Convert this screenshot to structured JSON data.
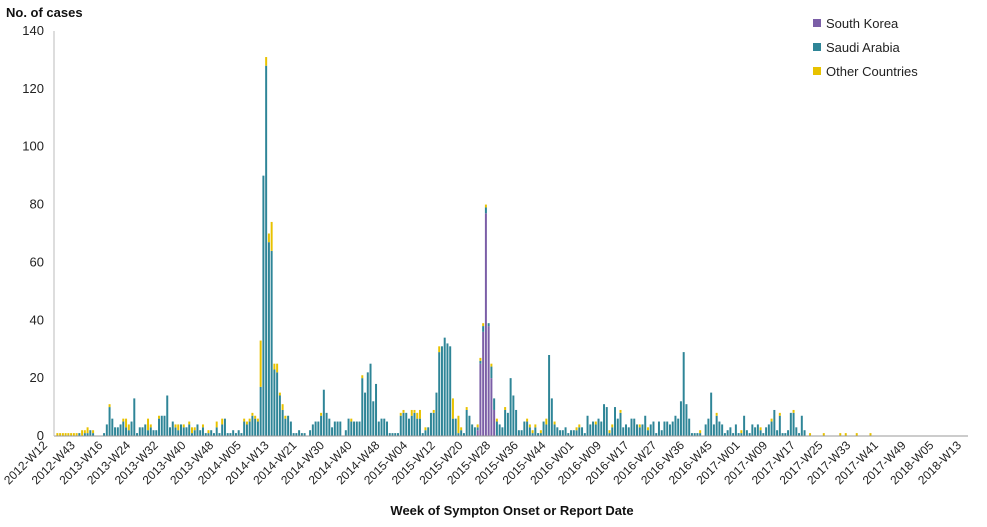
{
  "chart_data": {
    "type": "bar",
    "stacked": true,
    "ylabel": "No. of cases",
    "xlabel": "Week of Sympton Onset or Report Date",
    "ylim": [
      0,
      140
    ],
    "yticks": [
      0,
      20,
      40,
      60,
      80,
      100,
      120,
      140
    ],
    "grid": false,
    "legend_position": "top-right",
    "tick_labels": [
      "2012-W12",
      "2012-W43",
      "2013-W16",
      "2013-W24",
      "2013-W32",
      "2013-W40",
      "2013-W48",
      "2014-W05",
      "2014-W13",
      "2014-W21",
      "2014-W30",
      "2014-W40",
      "2014-W48",
      "2015-W04",
      "2015-W12",
      "2015-W20",
      "2015-W28",
      "2015-W36",
      "2015-W44",
      "2016-W01",
      "2016-W09",
      "2016-W17",
      "2016-W27",
      "2016-W36",
      "2016-W45",
      "2017-W01",
      "2017-W09",
      "2017-W17",
      "2017-W25",
      "2017-W33",
      "2017-W41",
      "2017-W49",
      "2018-W05",
      "2018-W13"
    ],
    "series": [
      {
        "name": "South Korea",
        "color": "#7b5ea7",
        "values": [
          0,
          0,
          0,
          0,
          0,
          0,
          0,
          0,
          0,
          0,
          0,
          0,
          0,
          0,
          0,
          0,
          0,
          0,
          0,
          0,
          0,
          0,
          0,
          0,
          0,
          0,
          0,
          0,
          0,
          0,
          0,
          0,
          0,
          0,
          0,
          0,
          0,
          0,
          0,
          0,
          0,
          0,
          0,
          0,
          0,
          0,
          0,
          0,
          0,
          0,
          0,
          0,
          0,
          0,
          0,
          0,
          0,
          0,
          0,
          0,
          0,
          0,
          0,
          0,
          0,
          0,
          0,
          0,
          0,
          0,
          0,
          0,
          0,
          0,
          0,
          0,
          0,
          0,
          0,
          0,
          0,
          0,
          0,
          0,
          0,
          0,
          0,
          0,
          0,
          0,
          0,
          0,
          0,
          0,
          0,
          0,
          0,
          0,
          0,
          0,
          0,
          0,
          0,
          0,
          0,
          0,
          0,
          0,
          0,
          0,
          0,
          0,
          0,
          0,
          0,
          0,
          0,
          0,
          0,
          0,
          0,
          0,
          0,
          0,
          0,
          0,
          0,
          0,
          0,
          0,
          0,
          0,
          0,
          0,
          0,
          0,
          0,
          0,
          0,
          0,
          0,
          0,
          0,
          0,
          0,
          0,
          0,
          0,
          0,
          0,
          0,
          0,
          0,
          2,
          25,
          36,
          77,
          38,
          20,
          9,
          0,
          0,
          0,
          0,
          0,
          0,
          0,
          0,
          0,
          0,
          0,
          0,
          0,
          0,
          0,
          0,
          0,
          0,
          0,
          0,
          0,
          0,
          0,
          0,
          0,
          0,
          0,
          0,
          0,
          0,
          0,
          0,
          0,
          0,
          0,
          0,
          0,
          0,
          0,
          0,
          0,
          0,
          0,
          0,
          0,
          0,
          0,
          0,
          0,
          0,
          0,
          0,
          0,
          0,
          0,
          0,
          0,
          0,
          0,
          0,
          0,
          0,
          0,
          0,
          0,
          0,
          0,
          0,
          0,
          0,
          0,
          0,
          0,
          0,
          0,
          0,
          0,
          0,
          0,
          0,
          0,
          0,
          0,
          0,
          0,
          0,
          0,
          0,
          0,
          0,
          0,
          0,
          0,
          0,
          0,
          0,
          0,
          0,
          0,
          0,
          0,
          0,
          0,
          0,
          0,
          0,
          0,
          0,
          0,
          0,
          0,
          0,
          0,
          0,
          0,
          0,
          0,
          0,
          0,
          0,
          0,
          0,
          0,
          0,
          0,
          0,
          0,
          0,
          0,
          0,
          0,
          0,
          0,
          0,
          0,
          0,
          0,
          0,
          0,
          0,
          0,
          0,
          0,
          0,
          0,
          0,
          0,
          0,
          0,
          0,
          0,
          0,
          0,
          0,
          0,
          0,
          0,
          0,
          0,
          0,
          0,
          0,
          0,
          0,
          0,
          0,
          0,
          0,
          0,
          0,
          0,
          0
        ]
      },
      {
        "name": "Saudi Arabia",
        "color": "#2e8597",
        "values": [
          0,
          0,
          0,
          0,
          0,
          0,
          0,
          0,
          1,
          0,
          1,
          1,
          2,
          1,
          0,
          0,
          0,
          1,
          4,
          10,
          6,
          3,
          3,
          4,
          5,
          3,
          2,
          5,
          13,
          1,
          3,
          3,
          4,
          2,
          3,
          2,
          2,
          6,
          7,
          7,
          14,
          3,
          5,
          3,
          2,
          4,
          3,
          3,
          4,
          1,
          2,
          4,
          2,
          3,
          1,
          1,
          2,
          1,
          3,
          1,
          4,
          6,
          1,
          1,
          2,
          1,
          2,
          1,
          5,
          4,
          5,
          7,
          6,
          5,
          17,
          90,
          128,
          67,
          64,
          23,
          22,
          14,
          9,
          6,
          7,
          5,
          1,
          1,
          2,
          1,
          1,
          0,
          2,
          4,
          5,
          5,
          7,
          16,
          8,
          6,
          3,
          5,
          5,
          5,
          0,
          2,
          6,
          5,
          5,
          5,
          5,
          20,
          15,
          22,
          25,
          12,
          18,
          5,
          6,
          6,
          5,
          1,
          1,
          1,
          1,
          7,
          8,
          8,
          6,
          7,
          8,
          6,
          6,
          1,
          2,
          3,
          8,
          8,
          15,
          29,
          31,
          34,
          32,
          31,
          6,
          6,
          1,
          2,
          1,
          9,
          7,
          4,
          3,
          1,
          1,
          2,
          2,
          1,
          4,
          4,
          5,
          4,
          3,
          9,
          8,
          20,
          14,
          9,
          2,
          2,
          5,
          5,
          3,
          1,
          3,
          1,
          1,
          5,
          4,
          28,
          13,
          4,
          3,
          2,
          2,
          3,
          1,
          2,
          2,
          2,
          3,
          3,
          1,
          7,
          4,
          5,
          4,
          6,
          5,
          11,
          10,
          1,
          3,
          10,
          6,
          8,
          3,
          4,
          3,
          6,
          6,
          4,
          3,
          4,
          7,
          2,
          4,
          5,
          1,
          5,
          2,
          5,
          5,
          4,
          5,
          7,
          6,
          12,
          29,
          11,
          6,
          1,
          1,
          1,
          1,
          0,
          4,
          6,
          15,
          4,
          7,
          5,
          4,
          1,
          2,
          3,
          1,
          4,
          1,
          1,
          7,
          2,
          1,
          4,
          3,
          4,
          2,
          1,
          3,
          4,
          5,
          9,
          2,
          7,
          1,
          1,
          2,
          8,
          8,
          3,
          1,
          7,
          2
        ]
      },
      {
        "name": "Other Countries",
        "color": "#e8c200",
        "values": [
          1,
          1,
          1,
          1,
          1,
          1,
          1,
          1,
          0,
          2,
          1,
          2,
          0,
          1,
          0,
          0,
          0,
          0,
          0,
          1,
          0,
          0,
          0,
          0,
          1,
          3,
          2,
          0,
          0,
          0,
          0,
          0,
          0,
          4,
          1,
          0,
          0,
          1,
          0,
          0,
          0,
          0,
          0,
          1,
          2,
          0,
          1,
          0,
          1,
          2,
          1,
          0,
          0,
          1,
          0,
          1,
          0,
          0,
          2,
          0,
          2,
          0,
          0,
          0,
          0,
          0,
          0,
          0,
          1,
          1,
          1,
          1,
          1,
          1,
          16,
          0,
          3,
          3,
          10,
          2,
          3,
          1,
          2,
          1,
          0,
          0,
          0,
          0,
          0,
          0,
          0,
          0,
          0,
          0,
          0,
          0,
          1,
          0,
          0,
          0,
          0,
          0,
          0,
          0,
          0,
          0,
          0,
          1,
          0,
          0,
          0,
          1,
          0,
          0,
          0,
          0,
          0,
          0,
          0,
          0,
          0,
          0,
          0,
          0,
          0,
          1,
          1,
          0,
          0,
          2,
          1,
          2,
          3,
          0,
          1,
          0,
          0,
          1,
          0,
          2,
          0,
          0,
          0,
          0,
          7,
          0,
          6,
          1,
          0,
          1,
          0,
          0,
          0,
          1,
          1,
          1,
          1,
          0,
          1,
          0,
          1,
          0,
          0,
          1,
          0,
          0,
          0,
          0,
          0,
          0,
          0,
          1,
          1,
          1,
          1,
          0,
          1,
          0,
          2,
          0,
          0,
          1,
          0,
          0,
          0,
          0,
          0,
          0,
          0,
          1,
          1,
          0,
          0,
          0,
          0,
          0,
          1,
          0,
          0,
          0,
          0,
          1,
          1,
          0,
          0,
          1,
          0,
          0,
          0,
          0,
          0,
          0,
          1,
          0,
          0,
          1,
          0,
          0,
          0,
          0,
          0,
          0,
          0,
          0,
          0,
          0,
          0,
          0,
          0,
          0,
          0,
          0,
          0,
          0,
          1,
          0,
          0,
          0,
          0,
          0,
          1,
          0,
          0,
          0,
          0,
          0,
          0,
          0,
          0,
          1,
          0,
          0,
          0,
          0,
          0,
          0,
          1,
          0,
          0,
          0,
          1,
          0,
          0,
          1,
          0,
          0,
          0,
          0,
          1,
          0,
          0,
          0,
          0,
          0,
          1,
          0,
          0,
          0,
          0,
          1,
          0,
          0,
          0,
          0,
          0,
          1,
          0,
          1,
          0,
          0,
          0,
          1,
          0,
          0,
          0,
          0,
          1,
          0
        ]
      }
    ]
  }
}
